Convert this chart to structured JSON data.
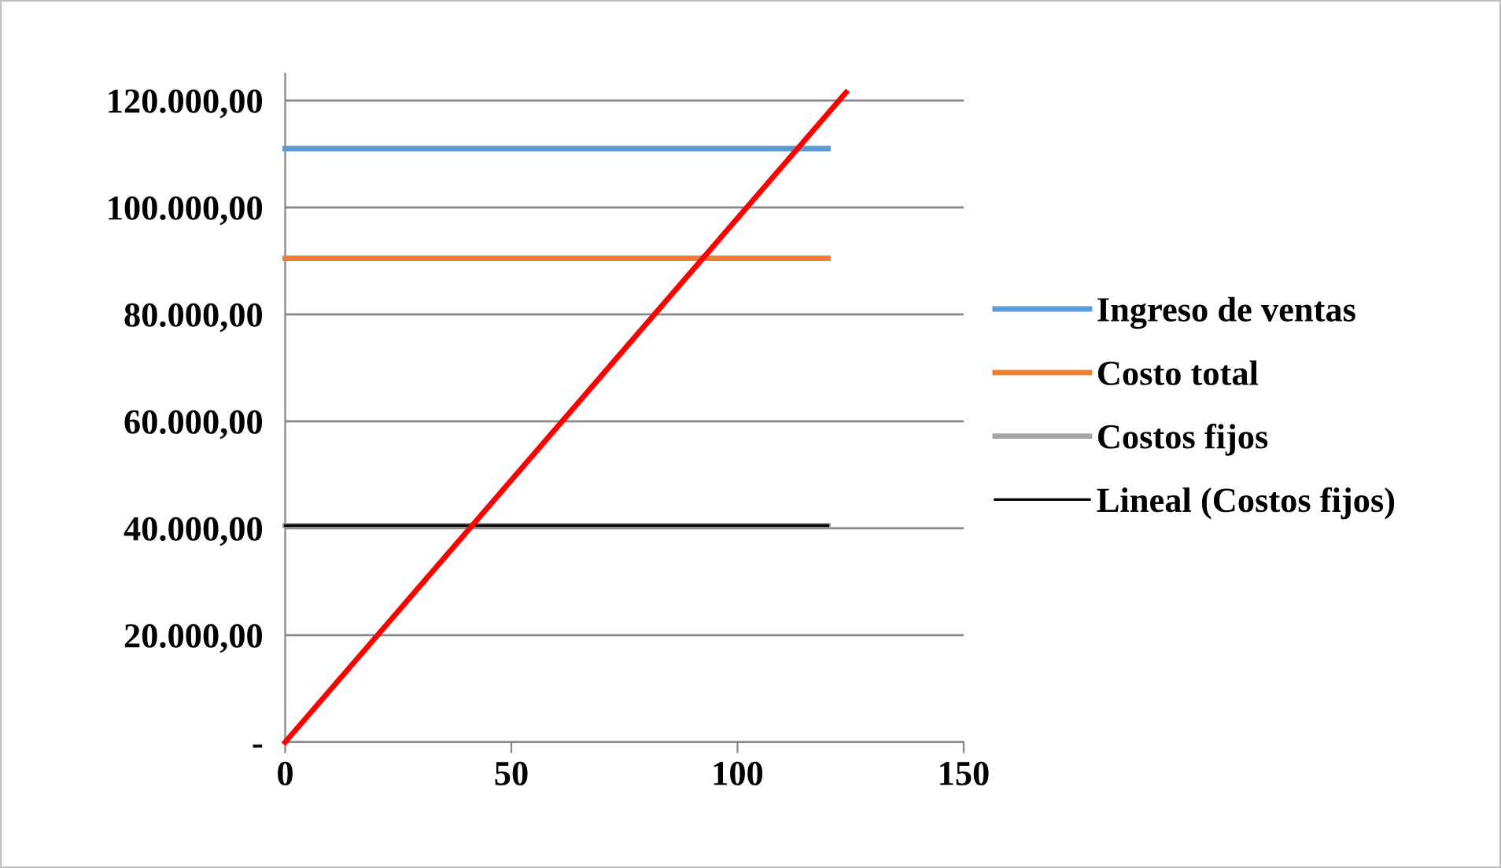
{
  "chart_data": {
    "type": "line",
    "xlim": [
      0,
      150
    ],
    "xticks": [
      0,
      50,
      100,
      150
    ],
    "ylim": [
      0,
      125000
    ],
    "yticks": [
      {
        "value": 0,
        "label": "-"
      },
      {
        "value": 20000,
        "label": "20.000,00"
      },
      {
        "value": 40000,
        "label": "40.000,00"
      },
      {
        "value": 60000,
        "label": "60.000,00"
      },
      {
        "value": 80000,
        "label": "80.000,00"
      },
      {
        "value": 100000,
        "label": "100.000,00"
      },
      {
        "value": 120000,
        "label": "120.000,00"
      }
    ],
    "grid": "y",
    "legend": "right",
    "marker": "none",
    "line_style": "solid",
    "series": [
      {
        "name": "Ingreso de ventas",
        "color": "#5b9bd5",
        "x": [
          0,
          120
        ],
        "values": [
          111000,
          111000
        ]
      },
      {
        "name": "Costo total",
        "color": "#ed7d31",
        "x": [
          0,
          120
        ],
        "values": [
          90500,
          90500
        ]
      },
      {
        "name": "Costos fijos",
        "color": "#a5a5a5",
        "x": [
          0,
          120
        ],
        "values": [
          40500,
          40500
        ]
      },
      {
        "name": "Lineal (Costos fijos)",
        "color": "#000000",
        "x": [
          0,
          120
        ],
        "values": [
          40500,
          40500
        ]
      },
      {
        "color": "#ff0000",
        "x": [
          0,
          124
        ],
        "values": [
          0,
          121500
        ]
      }
    ]
  }
}
